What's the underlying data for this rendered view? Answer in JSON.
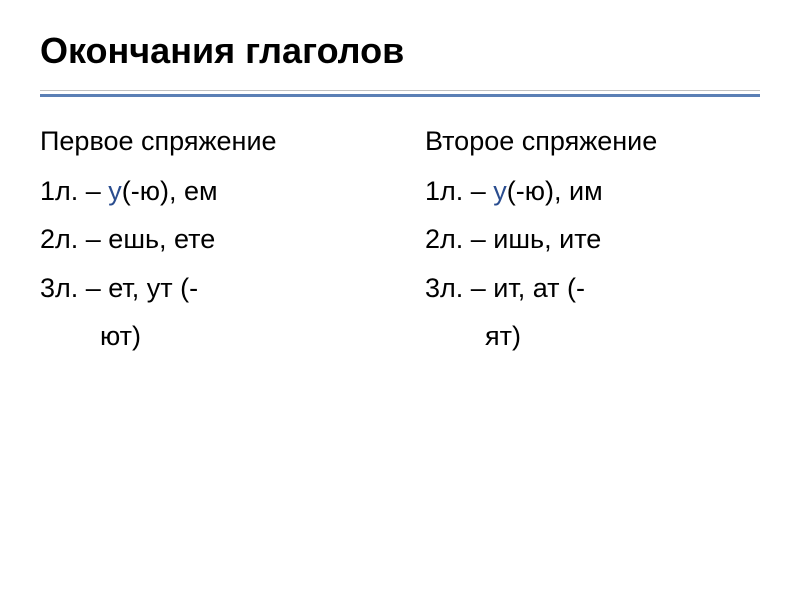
{
  "title": {
    "text": "Окончания глаголов",
    "color": "#bf3030"
  },
  "divider": {
    "main_color": "#5b7fb5",
    "top_color": "#c0c0c0"
  },
  "accent_color": "#2a4d8f",
  "text_color": "#000000",
  "left": {
    "subtitle": "Первое спряжение",
    "r1_prefix": "1л. – ",
    "r1_accent": "у",
    "r1_rest": "(-ю), ем",
    "r2_prefix": "2л. – ",
    "r2_rest": "ешь, ете",
    "r3_prefix": "3л. – ",
    "r3_rest1": "ет, ут (-",
    "r3_rest2": "ют)"
  },
  "right": {
    "subtitle": "Второе спряжение",
    "r1_prefix": "1л. – ",
    "r1_accent": "у",
    "r1_rest": "(-ю), им",
    "r2_prefix": "2л. – ",
    "r2_rest": "ишь, ите",
    "r3_prefix": "3л. – ",
    "r3_rest1": "ит, ат (-",
    "r3_rest2": "ят)"
  }
}
